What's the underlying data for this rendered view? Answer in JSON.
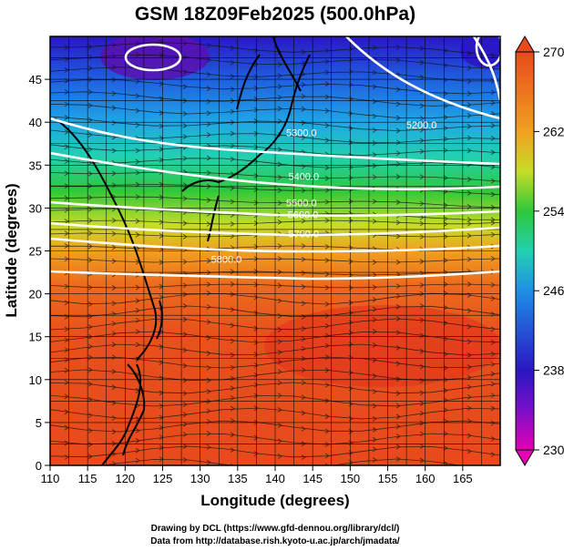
{
  "chart_data": {
    "type": "heatmap",
    "title": "GSM 18Z09Feb2025 (500.0hPa)",
    "xlabel": "Longitude (degrees)",
    "ylabel": "Latitude  (degrees)",
    "xlim": [
      110,
      170
    ],
    "ylim": [
      0,
      50
    ],
    "x_ticks": [
      110,
      115,
      120,
      125,
      130,
      135,
      140,
      145,
      150,
      155,
      160,
      165
    ],
    "y_ticks": [
      0,
      5,
      10,
      15,
      20,
      25,
      30,
      35,
      40,
      45
    ],
    "colorbar": {
      "ticks": [
        "230",
        "238",
        "246",
        "254",
        "262",
        "270"
      ],
      "range": [
        230,
        270
      ],
      "colors": [
        "#e600b4",
        "#2a17c2",
        "#1f8fe6",
        "#2fc83a",
        "#f0a020",
        "#e84a1c"
      ]
    },
    "contour_labels": [
      {
        "text": "5300.0",
        "lon": 143.5,
        "lat": 38.4
      },
      {
        "text": "5200.0",
        "lon": 159.5,
        "lat": 39.3
      },
      {
        "text": "5400.0",
        "lon": 143.8,
        "lat": 33.3
      },
      {
        "text": "5500.0",
        "lon": 143.5,
        "lat": 30.2
      },
      {
        "text": "5600.0",
        "lon": 143.7,
        "lat": 28.8
      },
      {
        "text": "5700.0",
        "lon": 143.8,
        "lat": 26.6
      },
      {
        "text": "5800.0",
        "lon": 133.5,
        "lat": 23.6
      }
    ],
    "credits": [
      "Drawing by DCL (https://www.gfd-dennou.org/library/dcl/)",
      "Data from http://database.rish.kyoto-u.ac.jp/arch/jmadata/"
    ]
  }
}
